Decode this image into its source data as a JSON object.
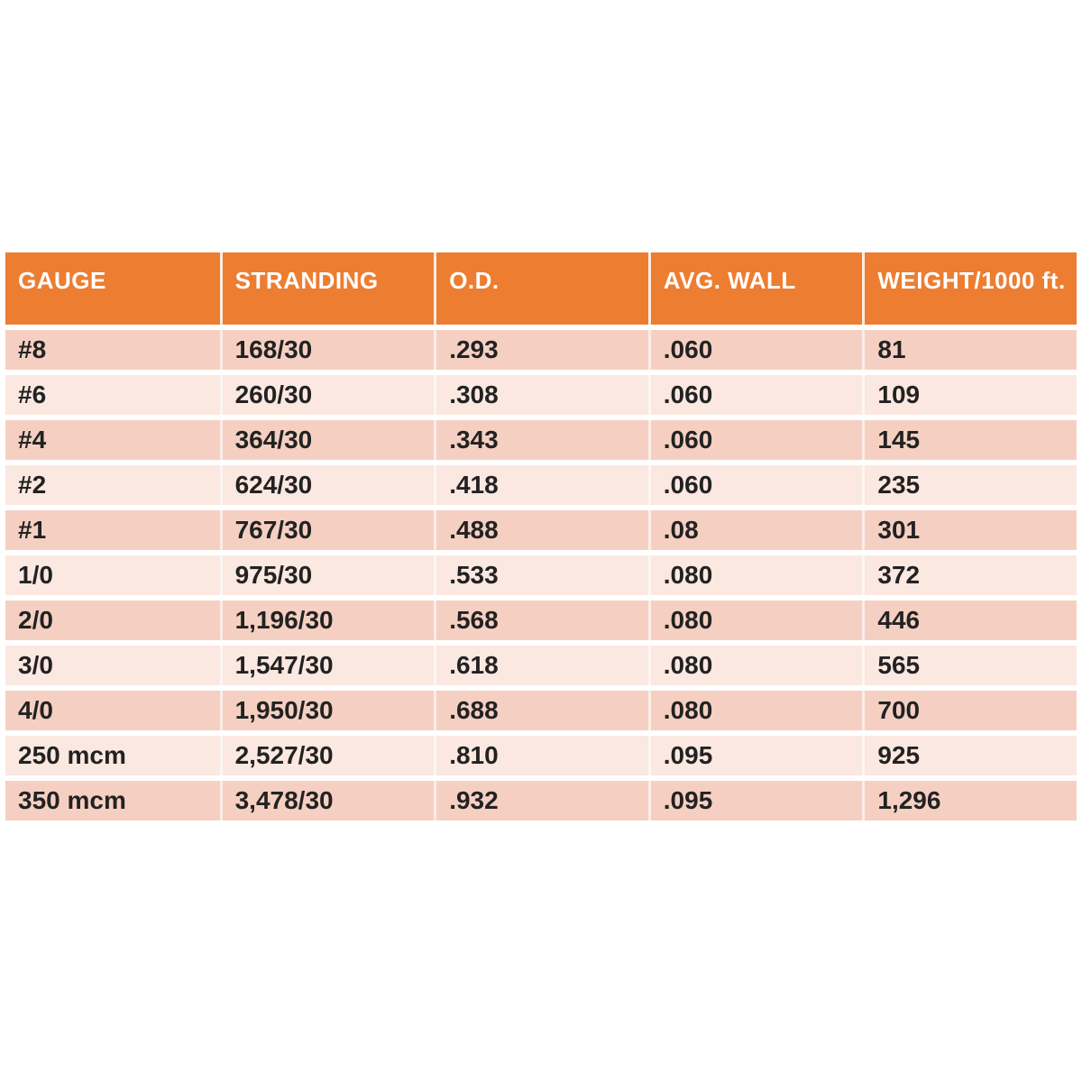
{
  "chart_data": {
    "type": "table",
    "columns": [
      "GAUGE",
      "STRANDING",
      "O.D.",
      "AVG. WALL",
      "WEIGHT/1000 ft."
    ],
    "rows": [
      [
        "#8",
        "168/30",
        ".293",
        ".060",
        "81"
      ],
      [
        "#6",
        "260/30",
        ".308",
        ".060",
        "109"
      ],
      [
        "#4",
        "364/30",
        ".343",
        ".060",
        "145"
      ],
      [
        "#2",
        "624/30",
        ".418",
        ".060",
        "235"
      ],
      [
        "#1",
        "767/30",
        ".488",
        ".08",
        "301"
      ],
      [
        "1/0",
        "975/30",
        ".533",
        ".080",
        "372"
      ],
      [
        "2/0",
        "1,196/30",
        ".568",
        ".080",
        "446"
      ],
      [
        "3/0",
        "1,547/30",
        ".618",
        ".080",
        "565"
      ],
      [
        "4/0",
        "1,950/30",
        ".688",
        ".080",
        "700"
      ],
      [
        "250 mcm",
        "2,527/30",
        ".810",
        ".095",
        "925"
      ],
      [
        "350 mcm",
        "3,478/30",
        ".932",
        ".095",
        "1,296"
      ]
    ],
    "colors": {
      "header_bg": "#ED7D31",
      "header_text": "#FFFFFF",
      "row_dark": "#F5D0C2",
      "row_light": "#FBE8E1",
      "cell_text": "#222222"
    }
  }
}
